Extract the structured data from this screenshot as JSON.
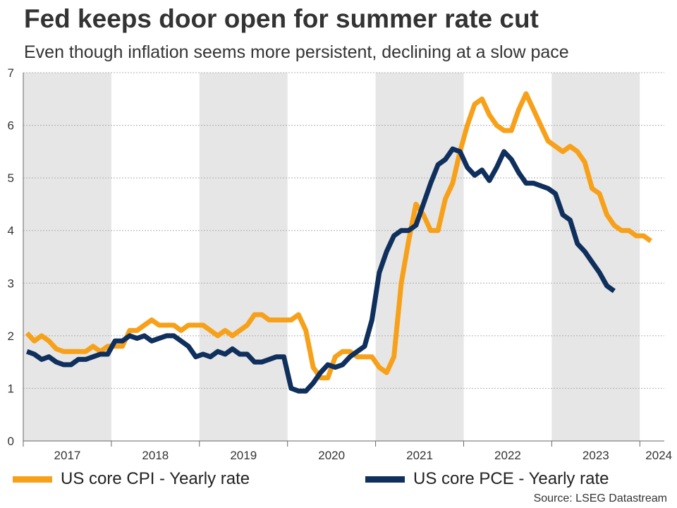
{
  "header": {
    "title": "Fed keeps door open for summer rate cut",
    "subtitle": "Even though inflation seems more persistent, declining at a slow pace"
  },
  "legend": {
    "cpi": "US core CPI - Yearly rate",
    "pce": "US core PCE - Yearly rate"
  },
  "source": "Source: LSEG Datastream",
  "colors": {
    "cpi": "#f7a11a",
    "pce": "#0f2f5c",
    "band": "#e6e6e6",
    "grid": "#b0b0b0"
  },
  "chart_data": {
    "type": "line",
    "title": "Fed keeps door open for summer rate cut",
    "subtitle": "Even though inflation seems more persistent, declining at a slow pace",
    "xlabel": "",
    "ylabel": "",
    "ylim": [
      0,
      7
    ],
    "yticks": [
      0,
      1,
      2,
      3,
      4,
      5,
      6,
      7
    ],
    "x_start": "2017-01",
    "x_labels": [
      "2017",
      "2018",
      "2019",
      "2020",
      "2021",
      "2022",
      "2023",
      "2024"
    ],
    "grid": true,
    "shaded_years": [
      "2017",
      "2019",
      "2021",
      "2023"
    ],
    "series": [
      {
        "name": "US core CPI - Yearly rate",
        "color": "#f7a11a",
        "values": [
          2.05,
          1.9,
          2.0,
          1.9,
          1.75,
          1.7,
          1.7,
          1.7,
          1.7,
          1.8,
          1.7,
          1.8,
          1.8,
          1.8,
          2.1,
          2.1,
          2.2,
          2.3,
          2.2,
          2.2,
          2.2,
          2.1,
          2.2,
          2.2,
          2.2,
          2.1,
          2.0,
          2.1,
          2.0,
          2.1,
          2.2,
          2.4,
          2.4,
          2.3,
          2.3,
          2.3,
          2.3,
          2.4,
          2.1,
          1.4,
          1.2,
          1.2,
          1.6,
          1.7,
          1.7,
          1.6,
          1.6,
          1.6,
          1.4,
          1.3,
          1.6,
          3.0,
          3.8,
          4.5,
          4.3,
          4.0,
          4.0,
          4.6,
          4.9,
          5.5,
          6.0,
          6.4,
          6.5,
          6.2,
          6.0,
          5.9,
          5.9,
          6.3,
          6.6,
          6.3,
          6.0,
          5.7,
          5.6,
          5.5,
          5.6,
          5.5,
          5.3,
          4.8,
          4.7,
          4.3,
          4.1,
          4.0,
          4.0,
          3.9,
          3.9,
          3.8
        ]
      },
      {
        "name": "US core PCE - Yearly rate",
        "color": "#0f2f5c",
        "values": [
          1.7,
          1.65,
          1.55,
          1.6,
          1.5,
          1.45,
          1.45,
          1.55,
          1.55,
          1.6,
          1.65,
          1.65,
          1.9,
          1.9,
          2.0,
          1.95,
          2.0,
          1.9,
          1.95,
          2.0,
          2.0,
          1.9,
          1.8,
          1.6,
          1.65,
          1.6,
          1.7,
          1.65,
          1.75,
          1.65,
          1.65,
          1.5,
          1.5,
          1.55,
          1.6,
          1.6,
          1.0,
          0.95,
          0.95,
          1.1,
          1.3,
          1.45,
          1.4,
          1.45,
          1.6,
          1.7,
          1.8,
          2.3,
          3.2,
          3.6,
          3.9,
          4.0,
          4.0,
          4.1,
          4.5,
          4.9,
          5.25,
          5.35,
          5.55,
          5.5,
          5.2,
          5.05,
          5.15,
          4.95,
          5.2,
          5.5,
          5.35,
          5.1,
          4.9,
          4.9,
          4.85,
          4.8,
          4.7,
          4.3,
          4.2,
          3.75,
          3.6,
          3.4,
          3.2,
          2.95,
          2.85
        ]
      }
    ]
  }
}
